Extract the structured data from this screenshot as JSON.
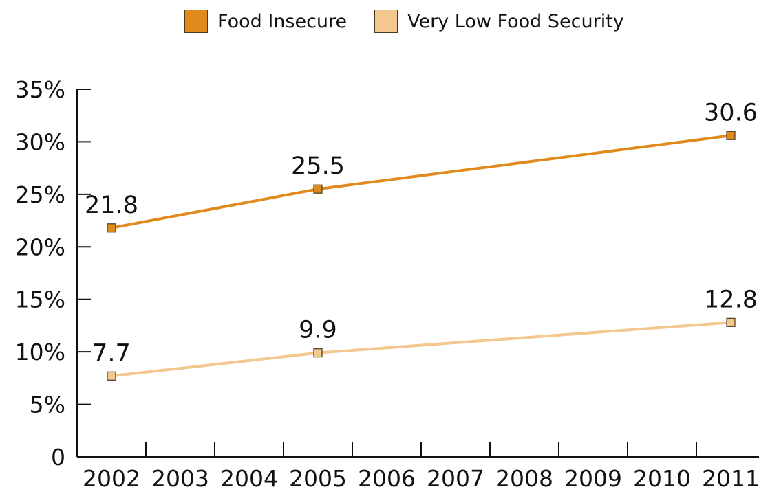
{
  "chart_data": {
    "type": "line",
    "title": "",
    "xlabel": "",
    "ylabel": "",
    "categories": [
      "2002",
      "2003",
      "2004",
      "2005",
      "2006",
      "2007",
      "2008",
      "2009",
      "2010",
      "2011"
    ],
    "yticks": [
      "0",
      "5%",
      "10%",
      "15%",
      "20%",
      "25%",
      "30%",
      "35%"
    ],
    "ytick_values": [
      0,
      5,
      10,
      15,
      20,
      25,
      30,
      35
    ],
    "ylim": [
      0,
      35
    ],
    "grid": false,
    "legend_position": "top-center",
    "series": [
      {
        "name": "Food Insecure",
        "color": "#e08a1e",
        "points": [
          {
            "x": "2002",
            "y": 21.8,
            "label": "21.8"
          },
          {
            "x": "2005",
            "y": 25.5,
            "label": "25.5"
          },
          {
            "x": "2011",
            "y": 30.6,
            "label": "30.6"
          }
        ]
      },
      {
        "name": "Very Low Food Security",
        "color": "#f2c88e",
        "points": [
          {
            "x": "2002",
            "y": 7.7,
            "label": "7.7"
          },
          {
            "x": "2005",
            "y": 9.9,
            "label": "9.9"
          },
          {
            "x": "2011",
            "y": 12.8,
            "label": "12.8"
          }
        ]
      }
    ]
  }
}
